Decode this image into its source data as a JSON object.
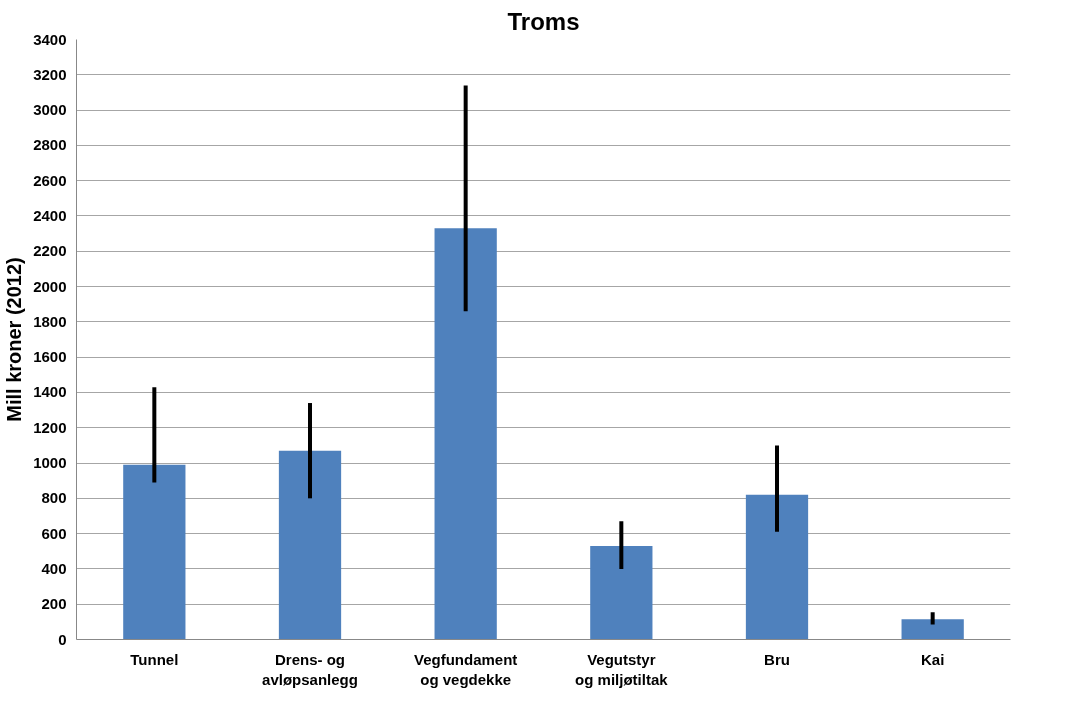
{
  "chart_data": {
    "type": "bar",
    "title": "Troms",
    "ylabel": "Mill kroner (2012)",
    "categories": [
      "Tunnel",
      "Drens- og\navløpsanlegg",
      "Vegfundament\nog vegdekke",
      "Vegutstyr\nog miljøtiltak",
      "Bru",
      "Kai"
    ],
    "values": [
      990,
      1070,
      2330,
      530,
      820,
      115
    ],
    "errors": [
      [
        890,
        1430
      ],
      [
        800,
        1340
      ],
      [
        1860,
        3140
      ],
      [
        400,
        670
      ],
      [
        610,
        1100
      ],
      [
        85,
        155
      ]
    ],
    "color": "#4f81bd",
    "ylim": [
      0,
      3400
    ],
    "yticks": [
      0,
      200,
      400,
      600,
      800,
      1000,
      1200,
      1400,
      1600,
      1800,
      2000,
      2200,
      2400,
      2600,
      2800,
      3000,
      3200,
      3400
    ],
    "grid": "y"
  }
}
